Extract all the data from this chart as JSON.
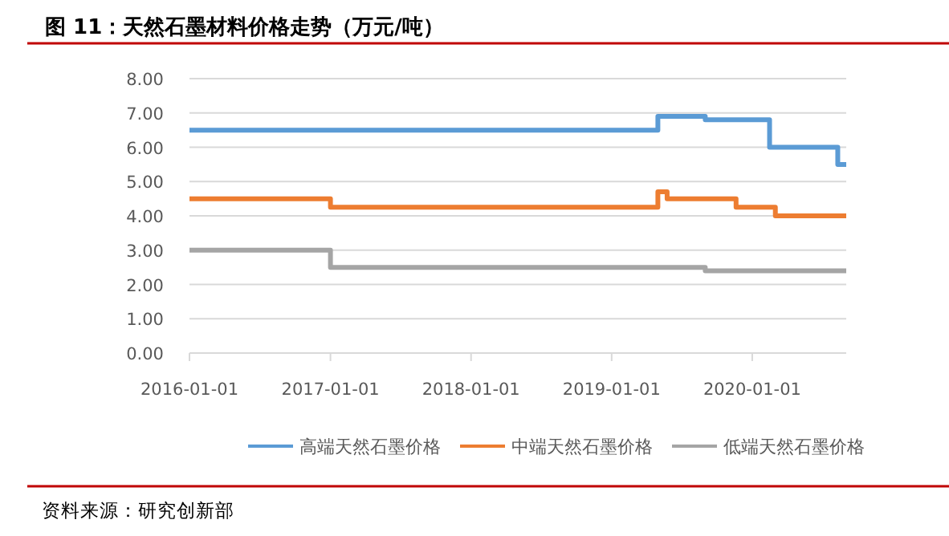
{
  "chart_data": {
    "type": "step",
    "title": "图 11：天然石墨材料价格走势（万元/吨）",
    "xlim": [
      "2016-01-01",
      "2020-09-01"
    ],
    "xticks": [
      {
        "value": "2016-01-01",
        "label": "2016-01-01"
      },
      {
        "value": "2017-01-01",
        "label": "2017-01-01"
      },
      {
        "value": "2018-01-01",
        "label": "2018-01-01"
      },
      {
        "value": "2019-01-01",
        "label": "2019-01-01"
      },
      {
        "value": "2020-01-01",
        "label": "2020-01-01"
      }
    ],
    "ylim": [
      0,
      8
    ],
    "yticks": [
      {
        "value": 0,
        "label": "0.00"
      },
      {
        "value": 1,
        "label": "1.00"
      },
      {
        "value": 2,
        "label": "2.00"
      },
      {
        "value": 3,
        "label": "3.00"
      },
      {
        "value": 4,
        "label": "4.00"
      },
      {
        "value": 5,
        "label": "5.00"
      },
      {
        "value": 6,
        "label": "6.00"
      },
      {
        "value": 7,
        "label": "7.00"
      },
      {
        "value": 8,
        "label": "8.00"
      }
    ],
    "grid": "y",
    "legend": "bottom",
    "series": [
      {
        "name": "高端天然石墨价格",
        "color": "#5b9bd5",
        "x": [
          "2016-01-01",
          "2019-05-01",
          "2019-09-01",
          "2020-02-15",
          "2020-08-10",
          "2020-09-01"
        ],
        "values": [
          6.5,
          6.9,
          6.8,
          6.0,
          5.5,
          5.5
        ]
      },
      {
        "name": "中端天然石墨价格",
        "color": "#ed7d31",
        "x": [
          "2016-01-01",
          "2017-01-01",
          "2019-05-01",
          "2019-05-25",
          "2019-11-20",
          "2020-03-01",
          "2020-09-01"
        ],
        "values": [
          4.5,
          4.25,
          4.7,
          4.5,
          4.25,
          4.0,
          4.0
        ]
      },
      {
        "name": "低端天然石墨价格",
        "color": "#a5a5a5",
        "x": [
          "2016-01-01",
          "2017-01-01",
          "2019-09-01",
          "2020-09-01"
        ],
        "values": [
          3.0,
          2.5,
          2.4,
          2.4
        ]
      }
    ],
    "annotations": [
      "资料来源：研究创新部"
    ]
  }
}
